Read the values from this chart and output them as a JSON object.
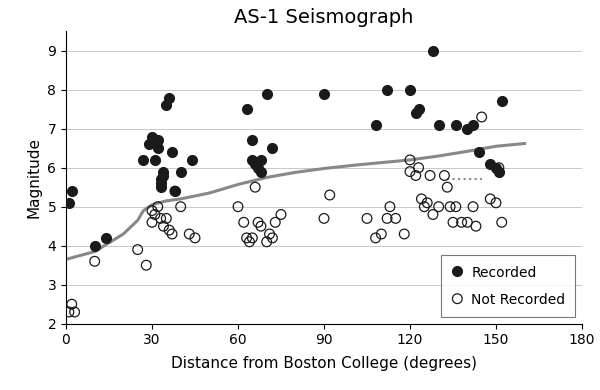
{
  "title": "AS-1 Seismograph",
  "xlabel": "Distance from Boston College (degrees)",
  "ylabel": "Magnitude",
  "xlim": [
    0,
    180
  ],
  "ylim": [
    2.0,
    9.5
  ],
  "xticks": [
    0,
    30,
    60,
    90,
    120,
    150,
    180
  ],
  "yticks": [
    2.0,
    3.0,
    4.0,
    5.0,
    6.0,
    7.0,
    8.0,
    9.0
  ],
  "recorded_x": [
    1,
    2,
    10,
    14,
    27,
    29,
    30,
    31,
    32,
    32,
    33,
    33,
    33,
    34,
    34,
    35,
    36,
    37,
    38,
    40,
    44,
    63,
    65,
    65,
    66,
    67,
    68,
    68,
    70,
    72,
    90,
    108,
    112,
    120,
    122,
    123,
    128,
    130,
    136,
    140,
    142,
    144,
    148,
    150,
    151,
    152
  ],
  "recorded_y": [
    5.1,
    5.4,
    4.0,
    4.2,
    6.2,
    6.6,
    6.8,
    6.2,
    6.7,
    6.5,
    5.6,
    5.7,
    5.5,
    5.9,
    5.8,
    7.6,
    7.8,
    6.4,
    5.4,
    5.9,
    6.2,
    7.5,
    6.7,
    6.2,
    6.1,
    6.0,
    5.9,
    6.2,
    7.9,
    6.5,
    7.9,
    7.1,
    8.0,
    8.0,
    7.4,
    7.5,
    9.0,
    7.1,
    7.1,
    7.0,
    7.1,
    6.4,
    6.1,
    6.0,
    5.9,
    7.7
  ],
  "not_recorded_x": [
    1,
    2,
    3,
    10,
    25,
    28,
    30,
    30,
    31,
    32,
    33,
    34,
    35,
    36,
    37,
    38,
    40,
    43,
    45,
    60,
    62,
    63,
    64,
    65,
    66,
    67,
    68,
    70,
    71,
    72,
    73,
    75,
    90,
    92,
    105,
    108,
    110,
    112,
    113,
    115,
    118,
    120,
    120,
    122,
    123,
    124,
    125,
    126,
    127,
    128,
    130,
    132,
    133,
    134,
    135,
    136,
    138,
    140,
    142,
    143,
    145,
    148,
    150,
    151,
    152
  ],
  "not_recorded_y": [
    2.3,
    2.5,
    2.3,
    3.6,
    3.9,
    3.5,
    4.9,
    4.6,
    4.8,
    5.0,
    4.7,
    4.5,
    4.7,
    4.4,
    4.3,
    5.4,
    5.0,
    4.3,
    4.2,
    5.0,
    4.6,
    4.2,
    4.1,
    4.2,
    5.5,
    4.6,
    4.5,
    4.1,
    4.3,
    4.2,
    4.6,
    4.8,
    4.7,
    5.3,
    4.7,
    4.2,
    4.3,
    4.7,
    5.0,
    4.7,
    4.3,
    6.2,
    5.9,
    5.8,
    6.0,
    5.2,
    5.0,
    5.1,
    5.8,
    4.8,
    5.0,
    5.8,
    5.5,
    5.0,
    4.6,
    5.0,
    4.6,
    4.6,
    5.0,
    4.5,
    7.3,
    5.2,
    5.1,
    6.0,
    4.6
  ],
  "curve_x": [
    0,
    10,
    20,
    25,
    27,
    30,
    35,
    40,
    50,
    60,
    70,
    80,
    90,
    100,
    110,
    120,
    130,
    140,
    150,
    160
  ],
  "curve_y": [
    3.65,
    3.85,
    4.3,
    4.65,
    4.9,
    5.05,
    5.15,
    5.2,
    5.35,
    5.57,
    5.75,
    5.88,
    5.98,
    6.06,
    6.13,
    6.2,
    6.3,
    6.42,
    6.55,
    6.62
  ],
  "dot_line_x": [
    133,
    145
  ],
  "dot_line_y": [
    5.72,
    5.72
  ],
  "bg_color": "#ffffff",
  "recorded_color": "#1a1a1a",
  "not_recorded_color": "#1a1a1a",
  "curve_color": "#888888",
  "marker_size": 7,
  "title_fontsize": 14,
  "label_fontsize": 11,
  "tick_fontsize": 10,
  "legend_fontsize": 10
}
